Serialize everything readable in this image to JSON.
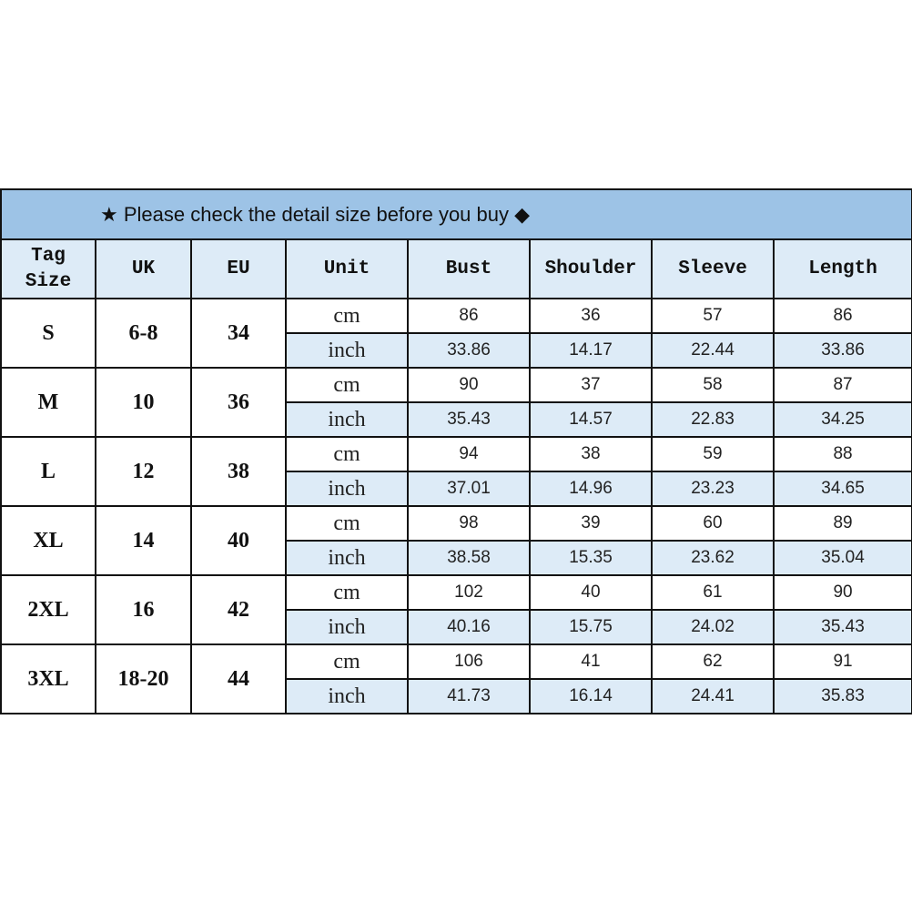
{
  "title": {
    "star_icon": "★",
    "text": "Please check the detail size before you buy",
    "diamond_icon": "◆"
  },
  "colors": {
    "title_bg": "#9dc3e6",
    "header_bg": "#ddebf7",
    "border": "#111111"
  },
  "headers": [
    "Tag Size",
    "UK",
    "EU",
    "Unit",
    "Bust",
    "Shoulder",
    "Sleeve",
    "Length"
  ],
  "rows": [
    {
      "tag": "S",
      "uk": "6-8",
      "eu": "34",
      "cm": [
        "86",
        "36",
        "57",
        "86"
      ],
      "inch": [
        "33.86",
        "14.17",
        "22.44",
        "33.86"
      ]
    },
    {
      "tag": "M",
      "uk": "10",
      "eu": "36",
      "cm": [
        "90",
        "37",
        "58",
        "87"
      ],
      "inch": [
        "35.43",
        "14.57",
        "22.83",
        "34.25"
      ]
    },
    {
      "tag": "L",
      "uk": "12",
      "eu": "38",
      "cm": [
        "94",
        "38",
        "59",
        "88"
      ],
      "inch": [
        "37.01",
        "14.96",
        "23.23",
        "34.65"
      ]
    },
    {
      "tag": "XL",
      "uk": "14",
      "eu": "40",
      "cm": [
        "98",
        "39",
        "60",
        "89"
      ],
      "inch": [
        "38.58",
        "15.35",
        "23.62",
        "35.04"
      ]
    },
    {
      "tag": "2XL",
      "uk": "16",
      "eu": "42",
      "cm": [
        "102",
        "40",
        "61",
        "90"
      ],
      "inch": [
        "40.16",
        "15.75",
        "24.02",
        "35.43"
      ]
    },
    {
      "tag": "3XL",
      "uk": "18-20",
      "eu": "44",
      "cm": [
        "106",
        "41",
        "62",
        "91"
      ],
      "inch": [
        "41.73",
        "16.14",
        "24.41",
        "35.83"
      ]
    }
  ],
  "units": {
    "cm": "cm",
    "inch": "inch"
  }
}
